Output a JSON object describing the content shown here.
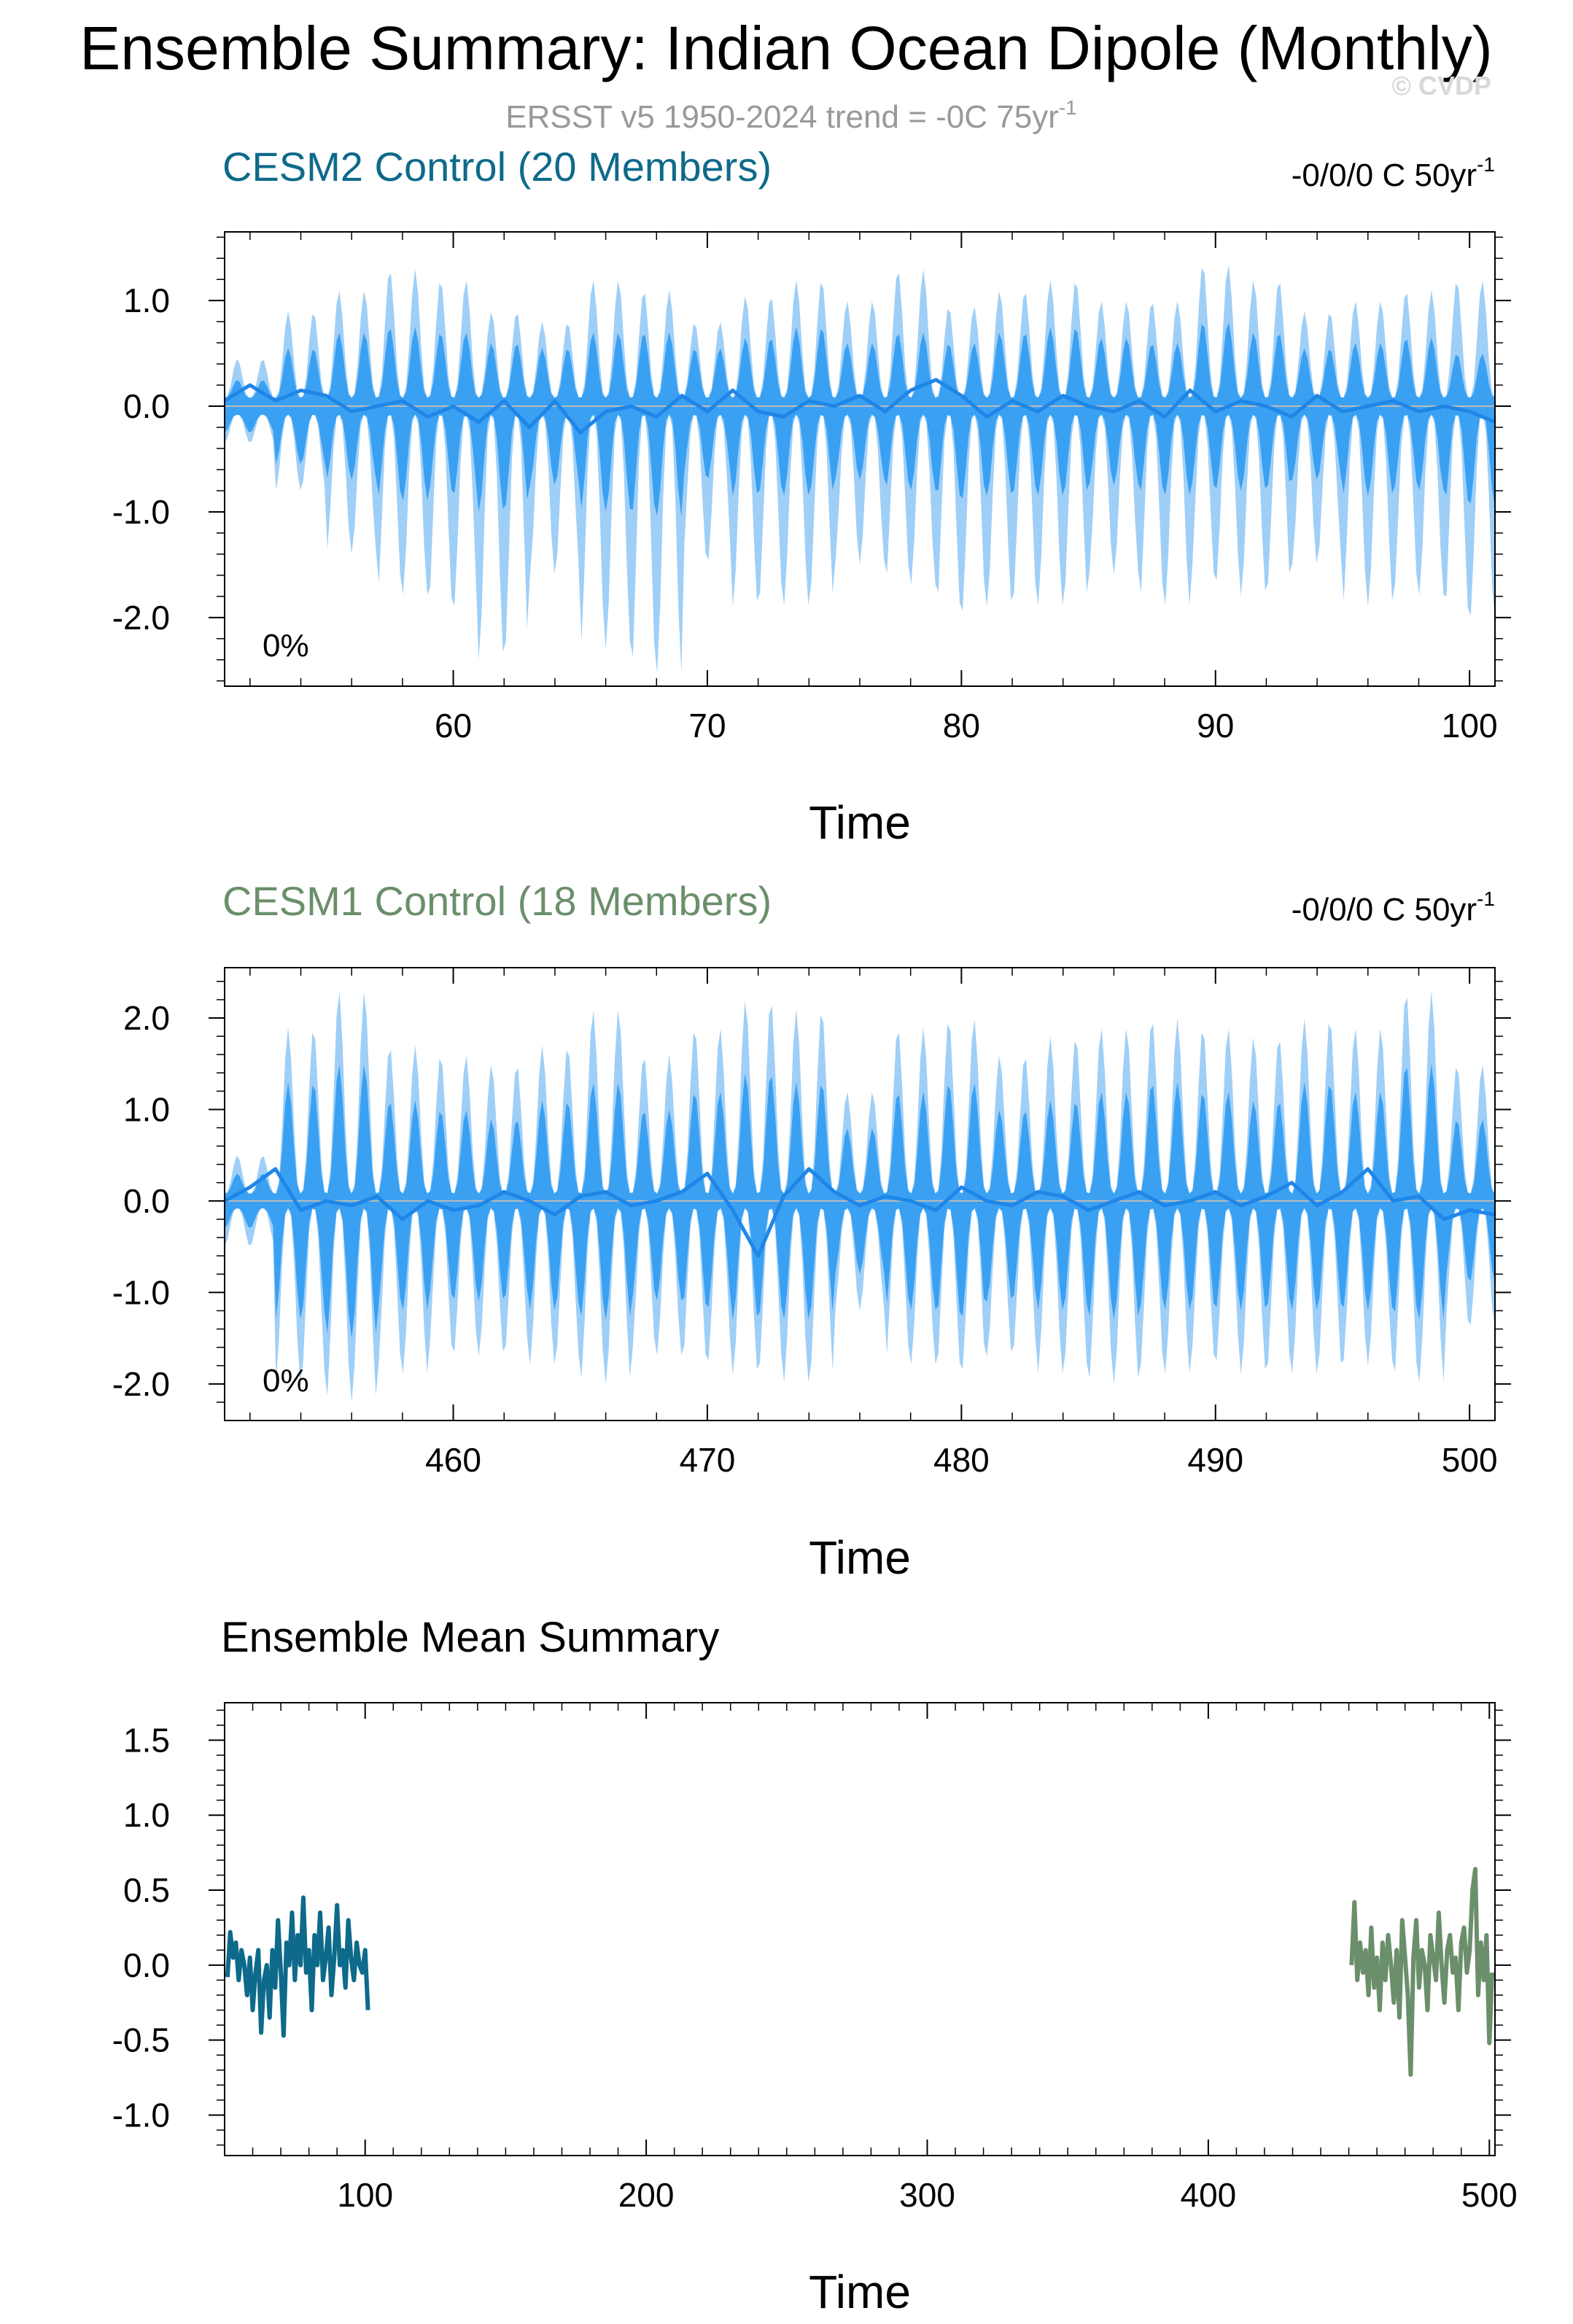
{
  "title": "Ensemble Summary: Indian Ocean Dipole (Monthly)",
  "subtitle": {
    "main": "ERSST v5 1950-2024 trend = -0C 75yr",
    "superscript": "-1"
  },
  "watermark": "© CVDP",
  "colors": {
    "cesm2": "#0e6a8a",
    "cesm1": "#6b8f6b",
    "outer_band": "#9fcff7",
    "inner_band": "#3aa0f2",
    "mean_line": "#1f86e8",
    "zero_line": "#bbbbbb"
  },
  "chart_data": [
    {
      "type": "area",
      "title": "CESM2 Control (20 Members)",
      "trend_label": "-0/0/0 C 50yr",
      "trend_superscript": "-1",
      "percent_label": "0%",
      "xlabel": "Time",
      "ylabel": "",
      "xlim": [
        51,
        101
      ],
      "ylim": [
        -2.65,
        1.65
      ],
      "xticks": [
        60,
        70,
        80,
        90,
        100
      ],
      "xtick_labels": [
        "60",
        "70",
        "80",
        "90",
        "100"
      ],
      "yticks": [
        -2.0,
        -1.0,
        0.0,
        1.0
      ],
      "ytick_labels": [
        "-2.0",
        "-1.0",
        "0.0",
        "1.0"
      ],
      "x_minor_step": 2,
      "y_minor_step": 0.2,
      "band_x_start": 51,
      "band_x_step": 2,
      "series": [
        {
          "role": "outer-band-upper",
          "values": [
            0.45,
            0.9,
            1.1,
            1.3,
            1.2,
            0.9,
            0.8,
            1.2,
            1.1,
            0.8,
            1.05,
            1.2,
            1.0,
            1.3,
            0.95,
            1.1,
            1.2,
            1.0,
            1.0,
            1.35,
            1.2,
            0.9,
            1.0,
            1.1,
            1.2
          ]
        },
        {
          "role": "outer-band-lower",
          "values": [
            -0.35,
            -0.8,
            -1.4,
            -1.8,
            -1.95,
            -2.4,
            -1.6,
            -2.3,
            -2.55,
            -1.5,
            -1.9,
            -1.9,
            -1.5,
            -1.7,
            -2.0,
            -1.9,
            -1.9,
            -1.6,
            -1.9,
            -1.7,
            -1.8,
            -1.5,
            -1.9,
            -1.8,
            -2.05
          ]
        },
        {
          "role": "inner-band-upper",
          "values": [
            0.25,
            0.55,
            0.7,
            0.75,
            0.7,
            0.6,
            0.55,
            0.7,
            0.7,
            0.55,
            0.65,
            0.75,
            0.6,
            0.7,
            0.6,
            0.7,
            0.75,
            0.65,
            0.6,
            0.8,
            0.7,
            0.55,
            0.6,
            0.65,
            0.5
          ]
        },
        {
          "role": "inner-band-lower",
          "values": [
            -0.25,
            -0.55,
            -0.7,
            -0.9,
            -0.85,
            -1.0,
            -0.75,
            -1.0,
            -1.05,
            -0.7,
            -0.85,
            -0.85,
            -0.7,
            -0.8,
            -0.9,
            -0.85,
            -0.85,
            -0.75,
            -0.85,
            -0.8,
            -0.8,
            -0.7,
            -0.85,
            -0.8,
            -0.95
          ]
        },
        {
          "role": "ensemble-mean",
          "x": [
            51,
            52,
            53,
            54,
            55,
            56,
            57,
            58,
            59,
            60,
            61,
            62,
            63,
            64,
            65,
            66,
            67,
            68,
            69,
            70,
            71,
            72,
            73,
            74,
            75,
            76,
            77,
            78,
            79,
            80,
            81,
            82,
            83,
            84,
            85,
            86,
            87,
            88,
            89,
            90,
            91,
            92,
            93,
            94,
            95,
            96,
            97,
            98,
            99,
            100,
            101
          ],
          "values": [
            0.05,
            0.2,
            0.05,
            0.15,
            0.1,
            -0.05,
            0.0,
            0.05,
            -0.1,
            0.0,
            -0.15,
            0.05,
            -0.2,
            0.05,
            -0.25,
            -0.05,
            0.0,
            -0.1,
            0.1,
            -0.05,
            0.15,
            -0.05,
            -0.1,
            0.05,
            0.0,
            0.1,
            -0.05,
            0.15,
            0.25,
            0.1,
            -0.1,
            0.05,
            -0.05,
            0.1,
            0.0,
            -0.05,
            0.05,
            -0.1,
            0.15,
            -0.05,
            0.05,
            0.0,
            -0.1,
            0.1,
            -0.05,
            0.0,
            0.05,
            -0.05,
            0.0,
            -0.05,
            -0.15
          ]
        }
      ]
    },
    {
      "type": "area",
      "title": "CESM1 Control (18 Members)",
      "trend_label": "-0/0/0 C 50yr",
      "trend_superscript": "-1",
      "percent_label": "0%",
      "xlabel": "Time",
      "ylabel": "",
      "xlim": [
        451,
        501
      ],
      "ylim": [
        -2.4,
        2.55
      ],
      "xticks": [
        460,
        470,
        480,
        490,
        500
      ],
      "xtick_labels": [
        "460",
        "470",
        "480",
        "490",
        "500"
      ],
      "yticks": [
        -2.0,
        -1.0,
        0.0,
        1.0,
        2.0
      ],
      "ytick_labels": [
        "-2.0",
        "-1.0",
        "0.0",
        "1.0",
        "2.0"
      ],
      "x_minor_step": 2,
      "y_minor_step": 0.2,
      "band_x_start": 451,
      "band_x_step": 2,
      "series": [
        {
          "role": "outer-band-upper",
          "values": [
            0.5,
            1.9,
            2.3,
            1.7,
            1.6,
            1.5,
            1.7,
            2.1,
            1.6,
            1.9,
            2.2,
            2.1,
            1.2,
            1.9,
            2.0,
            1.6,
            1.8,
            1.9,
            2.0,
            1.9,
            1.8,
            2.0,
            1.9,
            2.3,
            1.5
          ]
        },
        {
          "role": "outer-band-lower",
          "values": [
            -0.5,
            -2.0,
            -2.2,
            -1.9,
            -1.7,
            -1.7,
            -1.8,
            -2.0,
            -1.7,
            -1.8,
            -1.9,
            -2.0,
            -1.2,
            -1.8,
            -1.9,
            -1.7,
            -1.9,
            -2.0,
            -1.9,
            -1.8,
            -1.9,
            -1.9,
            -1.8,
            -2.0,
            -1.4
          ]
        },
        {
          "role": "inner-band-upper",
          "values": [
            0.3,
            1.3,
            1.5,
            1.1,
            1.0,
            0.9,
            1.1,
            1.3,
            1.0,
            1.2,
            1.4,
            1.3,
            0.8,
            1.2,
            1.3,
            1.0,
            1.1,
            1.2,
            1.3,
            1.2,
            1.1,
            1.3,
            1.2,
            1.5,
            0.9
          ]
        },
        {
          "role": "inner-band-lower",
          "values": [
            -0.3,
            -1.3,
            -1.5,
            -1.2,
            -1.1,
            -1.1,
            -1.2,
            -1.3,
            -1.1,
            -1.2,
            -1.3,
            -1.3,
            -0.8,
            -1.2,
            -1.3,
            -1.1,
            -1.2,
            -1.3,
            -1.2,
            -1.2,
            -1.2,
            -1.2,
            -1.2,
            -1.3,
            -0.9
          ]
        },
        {
          "role": "ensemble-mean",
          "x": [
            451,
            452,
            453,
            454,
            455,
            456,
            457,
            458,
            459,
            460,
            461,
            462,
            463,
            464,
            465,
            466,
            467,
            468,
            469,
            470,
            471,
            472,
            473,
            474,
            475,
            476,
            477,
            478,
            479,
            480,
            481,
            482,
            483,
            484,
            485,
            486,
            487,
            488,
            489,
            490,
            491,
            492,
            493,
            494,
            495,
            496,
            497,
            498,
            499,
            500,
            501
          ],
          "values": [
            0.0,
            0.15,
            0.35,
            -0.1,
            0.0,
            -0.05,
            0.05,
            -0.2,
            0.0,
            -0.1,
            -0.05,
            0.1,
            0.0,
            -0.15,
            0.05,
            0.1,
            -0.05,
            0.0,
            0.1,
            0.3,
            -0.1,
            -0.6,
            0.05,
            0.35,
            0.1,
            -0.05,
            0.05,
            0.0,
            -0.1,
            0.15,
            0.0,
            -0.05,
            0.1,
            0.05,
            -0.1,
            0.0,
            0.1,
            -0.05,
            0.0,
            0.1,
            -0.05,
            0.05,
            0.2,
            -0.05,
            0.1,
            0.35,
            0.0,
            0.05,
            -0.2,
            -0.1,
            -0.15
          ]
        }
      ]
    },
    {
      "type": "line",
      "title": "Ensemble Mean Summary",
      "xlabel": "Time",
      "ylabel": "",
      "xlim": [
        50,
        502
      ],
      "ylim": [
        -1.27,
        1.75
      ],
      "xticks": [
        100,
        200,
        300,
        400,
        500
      ],
      "xtick_labels": [
        "100",
        "200",
        "300",
        "400",
        "500"
      ],
      "yticks": [
        -1.0,
        -0.5,
        0.0,
        0.5,
        1.0,
        1.5
      ],
      "ytick_labels": [
        "-1.0",
        "-0.5",
        "0.0",
        "0.5",
        "1.0",
        "1.5"
      ],
      "x_minor_step": 10,
      "y_minor_step": 0.1,
      "series": [
        {
          "color_key": "cesm2",
          "x": [
            51,
            52,
            53,
            54,
            55,
            56,
            57,
            58,
            59,
            60,
            61,
            62,
            63,
            64,
            65,
            66,
            67,
            68,
            69,
            70,
            71,
            72,
            73,
            74,
            75,
            76,
            77,
            78,
            79,
            80,
            81,
            82,
            83,
            84,
            85,
            86,
            87,
            88,
            89,
            90,
            91,
            92,
            93,
            94,
            95,
            96,
            97,
            98,
            99,
            100,
            101
          ],
          "values": [
            -0.08,
            0.22,
            0.05,
            0.15,
            -0.1,
            0.1,
            0.0,
            -0.2,
            0.05,
            -0.3,
            -0.05,
            0.1,
            -0.45,
            -0.1,
            0.0,
            -0.35,
            0.1,
            -0.15,
            0.3,
            -0.05,
            -0.47,
            0.15,
            0.0,
            0.35,
            -0.1,
            0.2,
            0.0,
            0.45,
            -0.05,
            0.1,
            -0.3,
            0.2,
            0.0,
            0.35,
            -0.1,
            0.05,
            0.25,
            -0.2,
            0.05,
            0.4,
            0.0,
            0.1,
            -0.15,
            0.3,
            0.05,
            -0.1,
            0.15,
            0.0,
            -0.05,
            0.1,
            -0.3
          ]
        },
        {
          "color_key": "cesm1",
          "x": [
            451,
            452,
            453,
            454,
            455,
            456,
            457,
            458,
            459,
            460,
            461,
            462,
            463,
            464,
            465,
            466,
            467,
            468,
            469,
            470,
            471,
            472,
            473,
            474,
            475,
            476,
            477,
            478,
            479,
            480,
            481,
            482,
            483,
            484,
            485,
            486,
            487,
            488,
            489,
            490,
            491,
            492,
            493,
            494,
            495,
            496,
            497,
            498,
            499,
            500,
            501
          ],
          "values": [
            0.0,
            0.42,
            -0.1,
            0.15,
            -0.05,
            0.1,
            -0.2,
            0.25,
            -0.15,
            0.05,
            -0.3,
            0.15,
            -0.1,
            0.2,
            0.0,
            -0.25,
            0.1,
            -0.35,
            0.3,
            0.05,
            -0.2,
            -0.73,
            0.05,
            0.3,
            -0.15,
            0.1,
            0.0,
            -0.3,
            0.2,
            0.05,
            -0.1,
            0.35,
            0.0,
            -0.25,
            0.1,
            0.2,
            -0.05,
            0.05,
            -0.3,
            0.15,
            0.25,
            -0.05,
            0.1,
            0.5,
            0.64,
            -0.2,
            0.15,
            -0.1,
            0.2,
            -0.52,
            -0.05
          ]
        }
      ]
    }
  ]
}
